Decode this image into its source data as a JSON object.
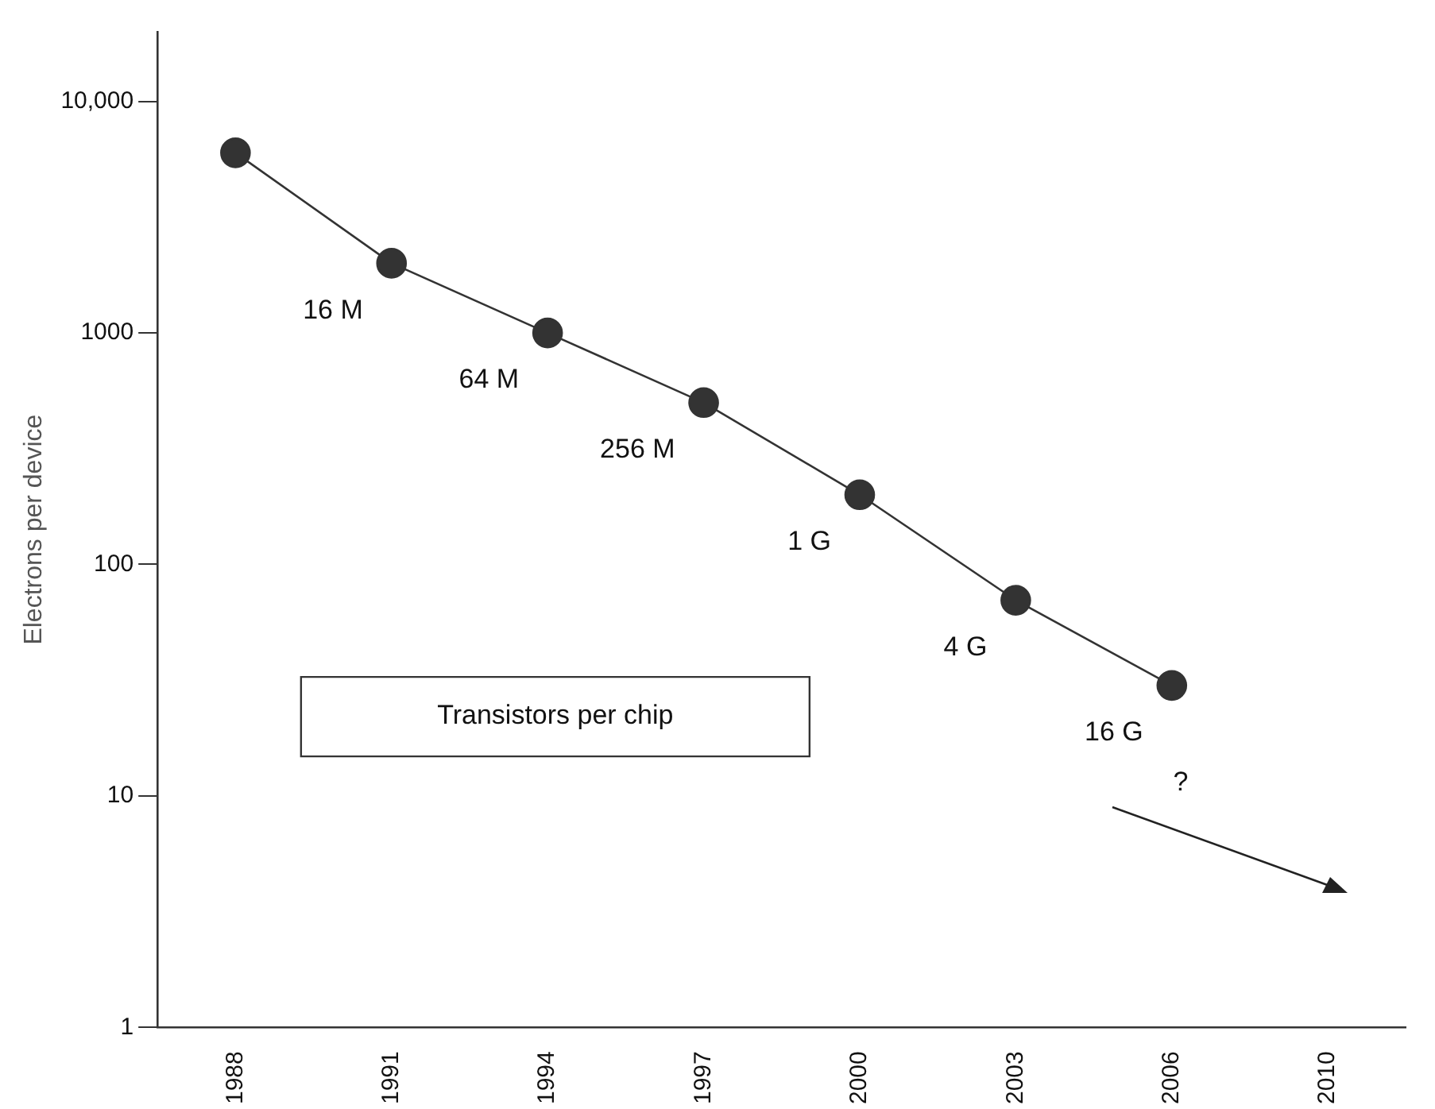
{
  "chart_data": {
    "type": "line",
    "ylabel": "Electrons per device",
    "categories": [
      "1988",
      "1991",
      "1994",
      "1997",
      "2000",
      "2003",
      "2006",
      "2010"
    ],
    "series": [
      {
        "color": "#333333",
        "values": [
          6000,
          2000,
          1000,
          500,
          200,
          70,
          30,
          null
        ]
      }
    ],
    "log": true,
    "ylim": [
      1,
      20000
    ],
    "yticks": [
      1,
      10,
      100,
      1000,
      {
        "value": 10000,
        "label": "10,000"
      }
    ],
    "grid": false,
    "legend": false,
    "marker": "circle",
    "line_style": "solid",
    "annotations": [
      {
        "text": "16 M",
        "x": "1991",
        "y": 2000
      },
      {
        "text": "64 M",
        "x": "1994",
        "y": 1000
      },
      {
        "text": "256 M",
        "x": "1997",
        "y": 500
      },
      {
        "text": "1 G",
        "x": "2000",
        "y": 200
      },
      {
        "text": "4 G",
        "x": "2003",
        "y": 70
      },
      {
        "text": "16 G",
        "x": "2006",
        "y": 30
      },
      "Transistors per chip",
      "?"
    ]
  }
}
